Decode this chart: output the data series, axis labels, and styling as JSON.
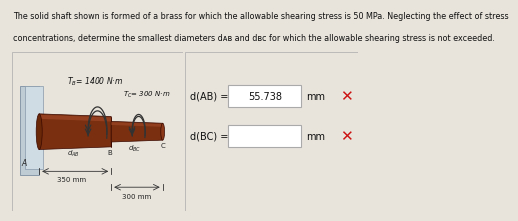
{
  "title_line1": "The solid shaft shown is formed of a brass for which the allowable shearing stress is 50 MPa. Neglecting the effect of stress",
  "title_line2": "concentrations, determine the smallest diameters dᴀʙ and dʙᴄ for which the allowable shearing stress is not exceeded.",
  "dAB_label": "d(AB) =",
  "dAB_value": "55.738",
  "dAB_unit": "mm",
  "dBC_label": "d(BC) =",
  "dBC_unit": "mm",
  "TB_label": "T",
  "TC_label": "T",
  "label_350": "350 mm",
  "label_300": "300 mm",
  "label_A": "A",
  "label_B": "B",
  "label_C": "C",
  "bg_color": "#e8e4dc",
  "diagram_bg": "#dcd8ce",
  "shaft_color_main": "#7a3010",
  "shaft_color_light": "#a04828",
  "wall_color": "#c0ccd4",
  "wall_color2": "#a8b8c0",
  "text_color": "#111111",
  "x_color": "#cc1111",
  "title_fontsize": 5.8,
  "ans_fontsize": 7.0,
  "small_fontsize": 5.2,
  "border_color": "#aaaaaa"
}
